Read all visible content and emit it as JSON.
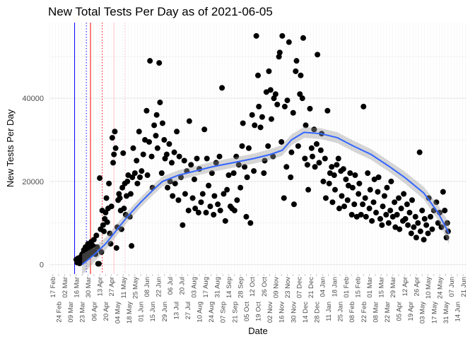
{
  "chart_data": {
    "type": "scatter",
    "title": "New Total Tests Per Day as of 2021-06-05",
    "xlabel": "Date",
    "ylabel": "New Tests Per Day",
    "x_origin": "2020-02-17",
    "x_units": "days since 2020-02-17",
    "xlim": [
      -4,
      494
    ],
    "ylim": [
      -2270,
      58200
    ],
    "y_ticks": [
      0,
      20000,
      40000
    ],
    "y_tick_labels": [
      "0",
      "20000",
      "40000"
    ],
    "y_minor_ticks": [
      10000,
      30000,
      50000
    ],
    "grid": true,
    "x_tick_labels": [
      "17 Feb",
      "24 Feb",
      "02 Mar",
      "09 Mar",
      "16 Mar",
      "23 Mar",
      "30 Mar",
      "06 Apr",
      "13 Apr",
      "20 Apr",
      "27 Apr",
      "04 May",
      "11 May",
      "18 May",
      "25 May",
      "01 Jun",
      "08 Jun",
      "15 Jun",
      "22 Jun",
      "29 Jun",
      "06 Jul",
      "13 Jul",
      "20 Jul",
      "27 Jul",
      "03 Aug",
      "10 Aug",
      "17 Aug",
      "24 Aug",
      "31 Aug",
      "07 Sep",
      "14 Sep",
      "21 Sep",
      "28 Sep",
      "05 Oct",
      "12 Oct",
      "19 Oct",
      "26 Oct",
      "02 Nov",
      "09 Nov",
      "16 Nov",
      "23 Nov",
      "30 Nov",
      "07 Dec",
      "14 Dec",
      "21 Dec",
      "28 Dec",
      "04 Jan",
      "11 Jan",
      "18 Jan",
      "25 Jan",
      "01 Feb",
      "08 Feb",
      "15 Feb",
      "22 Feb",
      "01 Mar",
      "08 Mar",
      "15 Mar",
      "22 Mar",
      "29 Mar",
      "05 Apr",
      "12 Apr",
      "19 Apr",
      "26 Apr",
      "03 May",
      "10 May",
      "17 May",
      "24 May",
      "31 May",
      "07 Jun",
      "14 Jun",
      "21 Jun"
    ],
    "x_tick_step_days": 7,
    "reference_lines": [
      {
        "x": 26,
        "color": "#0000ff",
        "style": "solid"
      },
      {
        "x": 40,
        "color": "#0000ff",
        "style": "dotted"
      },
      {
        "x": 45,
        "color": "#ff0000",
        "style": "solid"
      },
      {
        "x": 59,
        "color": "#ff0000",
        "style": "dotted"
      },
      {
        "x": 73,
        "color": "#ffc0cb",
        "style": "solid"
      },
      {
        "x": 86,
        "color": "#ffc0cb",
        "style": "dotted"
      }
    ],
    "point_color": "#000000",
    "smooth_color": "#3366ff",
    "band_color": "#999999",
    "points": [
      [
        28,
        1200
      ],
      [
        29,
        500
      ],
      [
        30,
        1500
      ],
      [
        31,
        800
      ],
      [
        32,
        300
      ],
      [
        33,
        1800
      ],
      [
        34,
        600
      ],
      [
        35,
        2500
      ],
      [
        36,
        1000
      ],
      [
        37,
        3500
      ],
      [
        38,
        2000
      ],
      [
        39,
        4200
      ],
      [
        40,
        1500
      ],
      [
        41,
        3000
      ],
      [
        42,
        5000
      ],
      [
        43,
        2200
      ],
      [
        44,
        4000
      ],
      [
        45,
        3500
      ],
      [
        46,
        5500
      ],
      [
        47,
        2800
      ],
      [
        48,
        4500
      ],
      [
        49,
        6000
      ],
      [
        50,
        3200
      ],
      [
        51,
        2500
      ],
      [
        52,
        7000
      ],
      [
        53,
        4200
      ],
      [
        54,
        200
      ],
      [
        55,
        200
      ],
      [
        56,
        20800
      ],
      [
        57,
        8500
      ],
      [
        58,
        3000
      ],
      [
        59,
        13000
      ],
      [
        60,
        9500
      ],
      [
        61,
        8000
      ],
      [
        62,
        11000
      ],
      [
        63,
        12500
      ],
      [
        64,
        16000
      ],
      [
        65,
        10200
      ],
      [
        66,
        13500
      ],
      [
        67,
        19500
      ],
      [
        68,
        7500
      ],
      [
        69,
        5000
      ],
      [
        70,
        14000
      ],
      [
        71,
        30500
      ],
      [
        72,
        24500
      ],
      [
        73,
        26500
      ],
      [
        74,
        32000
      ],
      [
        75,
        28000
      ],
      [
        76,
        4000
      ],
      [
        77,
        9000
      ],
      [
        78,
        15500
      ],
      [
        79,
        17000
      ],
      [
        80,
        16000
      ],
      [
        81,
        13000
      ],
      [
        82,
        8500
      ],
      [
        83,
        18500
      ],
      [
        84,
        26800
      ],
      [
        85,
        13500
      ],
      [
        86,
        19500
      ],
      [
        87,
        12000
      ],
      [
        88,
        16500
      ],
      [
        89,
        20000
      ],
      [
        90,
        21500
      ],
      [
        92,
        11500
      ],
      [
        93,
        17000
      ],
      [
        94,
        4500
      ],
      [
        95,
        21000
      ],
      [
        96,
        28000
      ],
      [
        98,
        22000
      ],
      [
        100,
        25000
      ],
      [
        101,
        19500
      ],
      [
        103,
        32000
      ],
      [
        104,
        21000
      ],
      [
        106,
        22500
      ],
      [
        108,
        26500
      ],
      [
        110,
        30000
      ],
      [
        112,
        37000
      ],
      [
        113,
        21500
      ],
      [
        115,
        29500
      ],
      [
        116,
        49000
      ],
      [
        118,
        26000
      ],
      [
        119,
        18500
      ],
      [
        121,
        33500
      ],
      [
        123,
        31000
      ],
      [
        124,
        36000
      ],
      [
        125,
        28000
      ],
      [
        127,
        48500
      ],
      [
        128,
        39000
      ],
      [
        130,
        22000
      ],
      [
        131,
        34000
      ],
      [
        133,
        30000
      ],
      [
        134,
        25500
      ],
      [
        136,
        26500
      ],
      [
        137,
        18500
      ],
      [
        139,
        29000
      ],
      [
        140,
        20000
      ],
      [
        142,
        24500
      ],
      [
        143,
        16500
      ],
      [
        145,
        27000
      ],
      [
        146,
        19500
      ],
      [
        148,
        32000
      ],
      [
        150,
        15500
      ],
      [
        151,
        26000
      ],
      [
        153,
        21000
      ],
      [
        155,
        9500
      ],
      [
        157,
        25000
      ],
      [
        158,
        17000
      ],
      [
        160,
        22500
      ],
      [
        162,
        13000
      ],
      [
        163,
        34500
      ],
      [
        165,
        24000
      ],
      [
        167,
        16000
      ],
      [
        169,
        20500
      ],
      [
        170,
        13500
      ],
      [
        172,
        25500
      ],
      [
        174,
        12500
      ],
      [
        175,
        23000
      ],
      [
        177,
        15000
      ],
      [
        179,
        17000
      ],
      [
        181,
        32500
      ],
      [
        183,
        12500
      ],
      [
        184,
        25500
      ],
      [
        186,
        19000
      ],
      [
        188,
        14000
      ],
      [
        190,
        22000
      ],
      [
        192,
        12000
      ],
      [
        193,
        16500
      ],
      [
        195,
        24500
      ],
      [
        197,
        14500
      ],
      [
        199,
        26000
      ],
      [
        200,
        13000
      ],
      [
        202,
        42500
      ],
      [
        204,
        17000
      ],
      [
        206,
        10500
      ],
      [
        208,
        18000
      ],
      [
        210,
        21500
      ],
      [
        212,
        14000
      ],
      [
        214,
        13500
      ],
      [
        216,
        22000
      ],
      [
        217,
        13000
      ],
      [
        219,
        26000
      ],
      [
        220,
        15500
      ],
      [
        222,
        24000
      ],
      [
        224,
        18500
      ],
      [
        226,
        28500
      ],
      [
        227,
        34000
      ],
      [
        229,
        23500
      ],
      [
        231,
        11500
      ],
      [
        232,
        21000
      ],
      [
        234,
        28000
      ],
      [
        236,
        10000
      ],
      [
        238,
        36000
      ],
      [
        240,
        22500
      ],
      [
        241,
        33500
      ],
      [
        243,
        55000
      ],
      [
        245,
        45500
      ],
      [
        246,
        38000
      ],
      [
        248,
        33000
      ],
      [
        250,
        35500
      ],
      [
        252,
        22000
      ],
      [
        253,
        25000
      ],
      [
        255,
        41500
      ],
      [
        257,
        28500
      ],
      [
        258,
        46500
      ],
      [
        260,
        42000
      ],
      [
        261,
        35000
      ],
      [
        263,
        26000
      ],
      [
        264,
        40000
      ],
      [
        266,
        41000
      ],
      [
        268,
        38500
      ],
      [
        270,
        50000
      ],
      [
        271,
        51000
      ],
      [
        273,
        29500
      ],
      [
        274,
        55000
      ],
      [
        276,
        16000
      ],
      [
        277,
        38000
      ],
      [
        279,
        23500
      ],
      [
        280,
        39500
      ],
      [
        282,
        53500
      ],
      [
        284,
        21000
      ],
      [
        285,
        27000
      ],
      [
        287,
        36500
      ],
      [
        288,
        14500
      ],
      [
        290,
        46500
      ],
      [
        291,
        49000
      ],
      [
        293,
        28500
      ],
      [
        295,
        41000
      ],
      [
        296,
        45500
      ],
      [
        298,
        40000
      ],
      [
        299,
        54500
      ],
      [
        301,
        25500
      ],
      [
        302,
        33500
      ],
      [
        304,
        24000
      ],
      [
        305,
        18000
      ],
      [
        307,
        37500
      ],
      [
        309,
        28000
      ],
      [
        310,
        26000
      ],
      [
        312,
        32500
      ],
      [
        313,
        23500
      ],
      [
        315,
        29000
      ],
      [
        316,
        50500
      ],
      [
        318,
        24500
      ],
      [
        320,
        27500
      ],
      [
        321,
        31500
      ],
      [
        323,
        20000
      ],
      [
        325,
        25500
      ],
      [
        326,
        16000
      ],
      [
        328,
        37000
      ],
      [
        330,
        19500
      ],
      [
        331,
        22000
      ],
      [
        333,
        23500
      ],
      [
        334,
        15000
      ],
      [
        336,
        21500
      ],
      [
        337,
        18000
      ],
      [
        339,
        24000
      ],
      [
        341,
        25500
      ],
      [
        342,
        13500
      ],
      [
        344,
        22500
      ],
      [
        345,
        16500
      ],
      [
        347,
        23000
      ],
      [
        348,
        14000
      ],
      [
        350,
        20500
      ],
      [
        352,
        15500
      ],
      [
        353,
        19000
      ],
      [
        355,
        22000
      ],
      [
        357,
        12000
      ],
      [
        358,
        18500
      ],
      [
        360,
        14500
      ],
      [
        361,
        21500
      ],
      [
        363,
        11500
      ],
      [
        365,
        17000
      ],
      [
        366,
        19500
      ],
      [
        368,
        12000
      ],
      [
        370,
        14500
      ],
      [
        371,
        38000
      ],
      [
        373,
        16000
      ],
      [
        374,
        11500
      ],
      [
        376,
        22000
      ],
      [
        378,
        13500
      ],
      [
        379,
        18000
      ],
      [
        381,
        10500
      ],
      [
        383,
        15000
      ],
      [
        384,
        20500
      ],
      [
        386,
        12500
      ],
      [
        388,
        17500
      ],
      [
        389,
        21000
      ],
      [
        391,
        11000
      ],
      [
        393,
        9500
      ],
      [
        394,
        14000
      ],
      [
        396,
        16500
      ],
      [
        398,
        12000
      ],
      [
        399,
        18500
      ],
      [
        401,
        10000
      ],
      [
        403,
        13000
      ],
      [
        404,
        20000
      ],
      [
        406,
        11500
      ],
      [
        408,
        15000
      ],
      [
        409,
        9000
      ],
      [
        411,
        12000
      ],
      [
        413,
        16000
      ],
      [
        414,
        8500
      ],
      [
        416,
        13500
      ],
      [
        418,
        10500
      ],
      [
        419,
        17000
      ],
      [
        421,
        11000
      ],
      [
        423,
        14500
      ],
      [
        424,
        9500
      ],
      [
        426,
        12500
      ],
      [
        428,
        7500
      ],
      [
        429,
        15500
      ],
      [
        431,
        9000
      ],
      [
        433,
        11500
      ],
      [
        434,
        6500
      ],
      [
        436,
        10000
      ],
      [
        438,
        27000
      ],
      [
        439,
        8000
      ],
      [
        441,
        13000
      ],
      [
        443,
        6000
      ],
      [
        444,
        11000
      ],
      [
        446,
        9500
      ],
      [
        448,
        7500
      ],
      [
        449,
        16000
      ],
      [
        451,
        11500
      ],
      [
        453,
        8500
      ],
      [
        455,
        13000
      ],
      [
        458,
        15000
      ],
      [
        460,
        10000
      ],
      [
        462,
        12500
      ],
      [
        464,
        9000
      ],
      [
        466,
        17500
      ],
      [
        468,
        13000
      ],
      [
        470,
        6500
      ],
      [
        471,
        10000
      ],
      [
        472,
        8000
      ]
    ],
    "smooth": [
      [
        35,
        0,
        2500
      ],
      [
        50,
        2500,
        1800
      ],
      [
        63,
        5000,
        1500
      ],
      [
        75,
        8000,
        1400
      ],
      [
        89,
        11500,
        1300
      ],
      [
        105,
        15000,
        1200
      ],
      [
        120,
        18000,
        1200
      ],
      [
        131,
        20000,
        1200
      ],
      [
        150,
        21500,
        1200
      ],
      [
        170,
        22500,
        1200
      ],
      [
        190,
        23500,
        1200
      ],
      [
        215,
        24500,
        1200
      ],
      [
        240,
        25500,
        1200
      ],
      [
        260,
        26500,
        1300
      ],
      [
        274,
        27500,
        1300
      ],
      [
        285,
        30000,
        1300
      ],
      [
        300,
        31800,
        1300
      ],
      [
        320,
        31500,
        1300
      ],
      [
        340,
        30500,
        1300
      ],
      [
        359,
        28500,
        1300
      ],
      [
        380,
        26500,
        1300
      ],
      [
        401,
        23700,
        1300
      ],
      [
        420,
        21000,
        1400
      ],
      [
        443,
        17200,
        1500
      ],
      [
        460,
        12500,
        1800
      ],
      [
        473,
        7500,
        2600
      ]
    ],
    "smooth_columns": [
      "x",
      "fit",
      "se_halfwidth"
    ]
  }
}
